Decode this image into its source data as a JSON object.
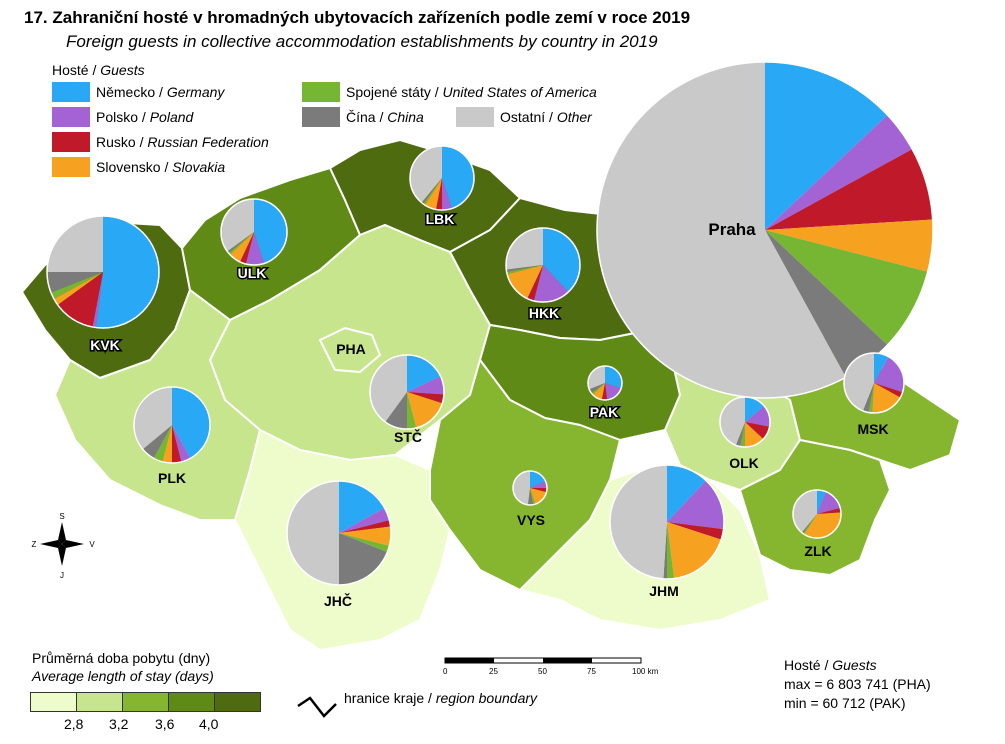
{
  "title": {
    "cz": "17. Zahraniční hosté v hromadných ubytovacích zařízeních podle zemí v roce 2019",
    "en": "Foreign guests in collective accommodation establishments by country in 2019"
  },
  "legend": {
    "title_cz": "Hosté /",
    "title_en": "Guests",
    "items": [
      {
        "cz": "Německo /",
        "en": "Germany",
        "color": "#29a8f5"
      },
      {
        "cz": "Polsko /",
        "en": "Poland",
        "color": "#a463d4"
      },
      {
        "cz": "Rusko /",
        "en": "Russian Federation",
        "color": "#c0192a"
      },
      {
        "cz": "Slovensko /",
        "en": "Slovakia",
        "color": "#f7a120"
      },
      {
        "cz": "Spojené státy /",
        "en": "United States of America",
        "color": "#77b633"
      },
      {
        "cz": "Čína /",
        "en": "China",
        "color": "#7b7b7b"
      },
      {
        "cz": "Ostatní /",
        "en": "Other",
        "color": "#c9c9c9"
      }
    ]
  },
  "regions": [
    {
      "code": "PHA",
      "fill": "#c7e58c"
    },
    {
      "code": "STČ",
      "fill": "#c7e58c"
    },
    {
      "code": "JHČ",
      "fill": "#eefccb"
    },
    {
      "code": "PLK",
      "fill": "#c7e58c"
    },
    {
      "code": "KVK",
      "fill": "#4e6b10"
    },
    {
      "code": "ULK",
      "fill": "#5f8a15"
    },
    {
      "code": "LBK",
      "fill": "#4e6b10"
    },
    {
      "code": "HKK",
      "fill": "#4e6b10"
    },
    {
      "code": "PAK",
      "fill": "#5f8a15"
    },
    {
      "code": "VYS",
      "fill": "#86b52f"
    },
    {
      "code": "JHM",
      "fill": "#eefccb"
    },
    {
      "code": "OLK",
      "fill": "#c7e58c"
    },
    {
      "code": "MSK",
      "fill": "#86b52f"
    },
    {
      "code": "ZLK",
      "fill": "#86b52f"
    }
  ],
  "pie_labels": {
    "Praha": "Praha",
    "KVK": "KVK",
    "ULK": "ULK",
    "LBK": "LBK",
    "HKK": "HKK",
    "PHA": "PHA",
    "STČ": "STČ",
    "PLK": "PLK",
    "PAK": "PAK",
    "VYS": "VYS",
    "JHČ": "JHČ",
    "JHM": "JHM",
    "OLK": "OLK",
    "MSK": "MSK",
    "ZLK": "ZLK"
  },
  "pies": [
    {
      "code": "Praha",
      "shares": [
        0.13,
        0.04,
        0.07,
        0.05,
        0.08,
        0.05,
        0.58
      ]
    },
    {
      "code": "KVK",
      "shares": [
        0.52,
        0.01,
        0.12,
        0.02,
        0.02,
        0.06,
        0.25
      ]
    },
    {
      "code": "ULK",
      "shares": [
        0.45,
        0.09,
        0.03,
        0.06,
        0.01,
        0.01,
        0.35
      ]
    },
    {
      "code": "LBK",
      "shares": [
        0.45,
        0.05,
        0.03,
        0.06,
        0.01,
        0.01,
        0.39
      ]
    },
    {
      "code": "HKK",
      "shares": [
        0.38,
        0.16,
        0.03,
        0.14,
        0.01,
        0.01,
        0.27
      ]
    },
    {
      "code": "STČ",
      "shares": [
        0.18,
        0.08,
        0.04,
        0.16,
        0.04,
        0.1,
        0.4
      ]
    },
    {
      "code": "PLK",
      "shares": [
        0.42,
        0.04,
        0.04,
        0.04,
        0.04,
        0.06,
        0.36
      ]
    },
    {
      "code": "PAK",
      "shares": [
        0.3,
        0.18,
        0.05,
        0.1,
        0.02,
        0.04,
        0.31
      ]
    },
    {
      "code": "VYS",
      "shares": [
        0.18,
        0.07,
        0.04,
        0.16,
        0.02,
        0.05,
        0.48
      ]
    },
    {
      "code": "JHČ",
      "shares": [
        0.17,
        0.04,
        0.02,
        0.06,
        0.02,
        0.19,
        0.5
      ]
    },
    {
      "code": "JHM",
      "shares": [
        0.12,
        0.15,
        0.03,
        0.18,
        0.02,
        0.01,
        0.49
      ]
    },
    {
      "code": "OLK",
      "shares": [
        0.14,
        0.14,
        0.09,
        0.13,
        0.03,
        0.03,
        0.44
      ]
    },
    {
      "code": "MSK",
      "shares": [
        0.08,
        0.22,
        0.03,
        0.18,
        0.02,
        0.03,
        0.44
      ]
    },
    {
      "code": "ZLK",
      "shares": [
        0.06,
        0.15,
        0.03,
        0.35,
        0.01,
        0.01,
        0.39
      ]
    }
  ],
  "stay_legend": {
    "title_cz": "Průměrná doba pobytu (dny)",
    "title_en": "Average length of stay (days)",
    "class_colors": [
      "#eefccb",
      "#c7e58c",
      "#86b52f",
      "#5f8a15",
      "#4e6b10"
    ],
    "ticks": [
      "2,8",
      "3,2",
      "3,6",
      "4,0"
    ]
  },
  "boundary_legend": {
    "cz": "hranice kraje /",
    "en": "region boundary"
  },
  "scale_bar": {
    "ticks": [
      "0",
      "25",
      "50",
      "75",
      "100 km"
    ]
  },
  "compass": {
    "north": "S",
    "south": "J",
    "east": "V",
    "west": "Z"
  },
  "guests_note": {
    "title_cz": "Hosté /",
    "title_en": "Guests",
    "max": "max = 6 803 741 (PHA)",
    "min": "min = 60 712 (PAK)"
  }
}
